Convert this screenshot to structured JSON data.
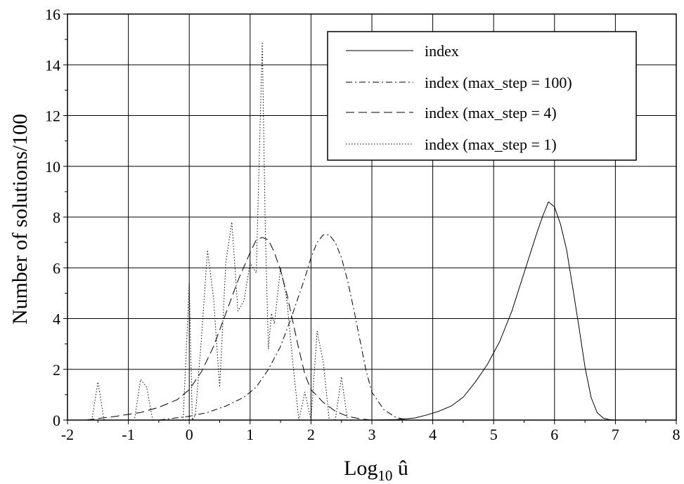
{
  "chart_data": {
    "type": "line",
    "title": "",
    "xlabel": "Log",
    "xlabel_sub": "10",
    "xlabel_suffix": " û",
    "ylabel": "Number of solutions/100",
    "xlim": [
      -2,
      8
    ],
    "ylim": [
      0,
      16
    ],
    "x_ticks": [
      -2,
      -1,
      0,
      1,
      2,
      3,
      4,
      5,
      6,
      7,
      8
    ],
    "y_ticks": [
      0,
      2,
      4,
      6,
      8,
      10,
      12,
      14,
      16
    ],
    "grid": true,
    "legend_position": "top-right",
    "series": [
      {
        "name": "index",
        "dash": "solid",
        "x": [
          3.0,
          3.4,
          3.7,
          3.9,
          4.1,
          4.3,
          4.5,
          4.7,
          4.9,
          5.1,
          5.3,
          5.5,
          5.7,
          5.8,
          5.9,
          6.0,
          6.1,
          6.2,
          6.3,
          6.4,
          6.5,
          6.6,
          6.7,
          6.8,
          6.9,
          7.0,
          8.0
        ],
        "y": [
          0.0,
          0.02,
          0.08,
          0.2,
          0.35,
          0.55,
          0.9,
          1.5,
          2.2,
          3.1,
          4.3,
          5.8,
          7.3,
          8.0,
          8.6,
          8.4,
          7.7,
          6.7,
          5.2,
          3.7,
          2.1,
          0.9,
          0.3,
          0.08,
          0.02,
          0.0,
          0.0
        ]
      },
      {
        "name": "index (max_step = 100)",
        "dash": "dashdot",
        "x": [
          -0.5,
          0.0,
          0.3,
          0.6,
          0.9,
          1.1,
          1.3,
          1.5,
          1.7,
          1.9,
          2.0,
          2.1,
          2.2,
          2.3,
          2.4,
          2.5,
          2.6,
          2.7,
          2.8,
          2.9,
          3.0,
          3.2,
          3.4,
          3.6
        ],
        "y": [
          0.0,
          0.15,
          0.3,
          0.55,
          0.9,
          1.3,
          2.0,
          2.9,
          4.2,
          5.6,
          6.4,
          7.0,
          7.3,
          7.3,
          7.0,
          6.4,
          5.5,
          4.4,
          3.2,
          2.0,
          1.1,
          0.4,
          0.1,
          0.0
        ]
      },
      {
        "name": "index (max_step = 4)",
        "dash": "dashed",
        "x": [
          -1.7,
          -1.2,
          -0.8,
          -0.5,
          -0.2,
          0.0,
          0.2,
          0.4,
          0.6,
          0.8,
          1.0,
          1.1,
          1.2,
          1.3,
          1.4,
          1.5,
          1.6,
          1.7,
          1.8,
          1.9,
          2.0,
          2.2,
          2.4,
          2.6,
          2.8,
          3.0
        ],
        "y": [
          0.0,
          0.15,
          0.3,
          0.5,
          0.8,
          1.2,
          1.9,
          2.9,
          4.2,
          5.5,
          6.6,
          7.1,
          7.2,
          7.1,
          6.6,
          5.9,
          5.0,
          3.9,
          2.8,
          1.8,
          1.2,
          0.7,
          0.35,
          0.15,
          0.05,
          0.0
        ]
      },
      {
        "name": "index (max_step = 1)",
        "dash": "dotted",
        "x": [
          -1.6,
          -1.5,
          -1.4,
          -0.9,
          -0.8,
          -0.7,
          -0.6,
          -0.4,
          -0.1,
          0.0,
          0.05,
          0.1,
          0.2,
          0.3,
          0.4,
          0.5,
          0.6,
          0.7,
          0.8,
          0.9,
          1.0,
          1.1,
          1.2,
          1.25,
          1.3,
          1.35,
          1.4,
          1.5,
          1.6,
          1.7,
          1.8,
          1.9,
          2.0,
          2.1,
          2.2,
          2.3,
          2.4,
          2.5,
          2.6
        ],
        "y": [
          0.0,
          1.5,
          0.0,
          0.0,
          1.6,
          1.3,
          0.0,
          0.0,
          0.0,
          5.4,
          0.0,
          0.2,
          3.2,
          6.7,
          4.8,
          1.3,
          6.2,
          7.8,
          4.3,
          4.7,
          6.2,
          5.8,
          14.9,
          7.5,
          2.8,
          4.2,
          3.8,
          6.0,
          4.8,
          2.3,
          0.0,
          1.1,
          0.0,
          3.5,
          2.3,
          0.0,
          0.0,
          1.7,
          0.0
        ]
      }
    ]
  }
}
